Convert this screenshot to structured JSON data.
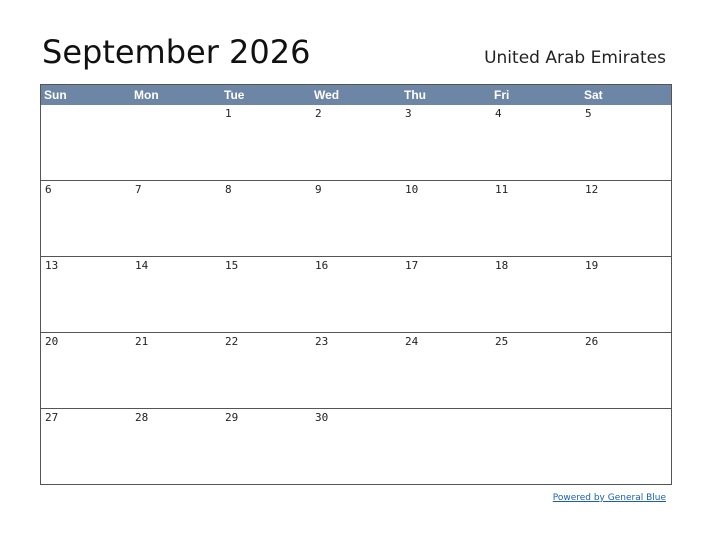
{
  "header": {
    "title": "September 2026",
    "region": "United Arab Emirates"
  },
  "calendar": {
    "weekdays": [
      "Sun",
      "Mon",
      "Tue",
      "Wed",
      "Thu",
      "Fri",
      "Sat"
    ],
    "weeks": [
      [
        null,
        null,
        1,
        2,
        3,
        4,
        5
      ],
      [
        6,
        7,
        8,
        9,
        10,
        11,
        12
      ],
      [
        13,
        14,
        15,
        16,
        17,
        18,
        19
      ],
      [
        20,
        21,
        22,
        23,
        24,
        25,
        26
      ],
      [
        27,
        28,
        29,
        30,
        null,
        null,
        null
      ]
    ]
  },
  "footer": {
    "link": "Powered by General Blue"
  }
}
